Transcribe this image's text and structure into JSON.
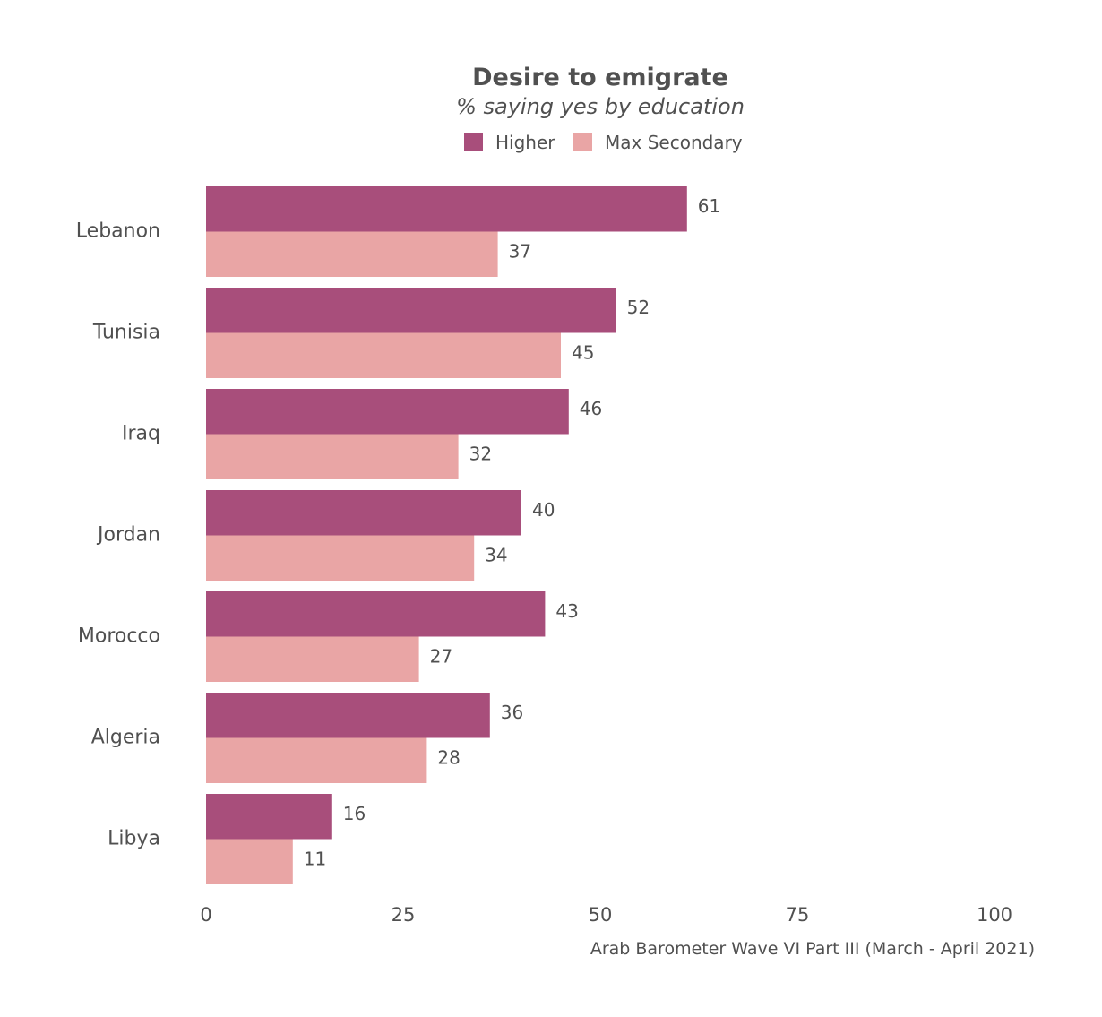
{
  "chart_data": {
    "type": "bar",
    "orientation": "horizontal",
    "title": "Desire to emigrate",
    "subtitle": "% saying yes by education",
    "categories": [
      "Lebanon",
      "Tunisia",
      "Iraq",
      "Jordan",
      "Morocco",
      "Algeria",
      "Libya"
    ],
    "series": [
      {
        "name": "Higher",
        "color": "#a84e7b",
        "values": [
          61,
          52,
          46,
          40,
          43,
          36,
          16
        ]
      },
      {
        "name": "Max Secondary",
        "color": "#e9a5a5",
        "values": [
          37,
          45,
          32,
          34,
          27,
          28,
          11
        ]
      }
    ],
    "xlim": [
      0,
      100
    ],
    "xticks": [
      0,
      25,
      50,
      75,
      100
    ],
    "xlabel": "",
    "ylabel": "",
    "grid": false,
    "legend_position": "top-center",
    "caption": "Arab Barometer Wave VI Part III (March - April 2021)"
  }
}
